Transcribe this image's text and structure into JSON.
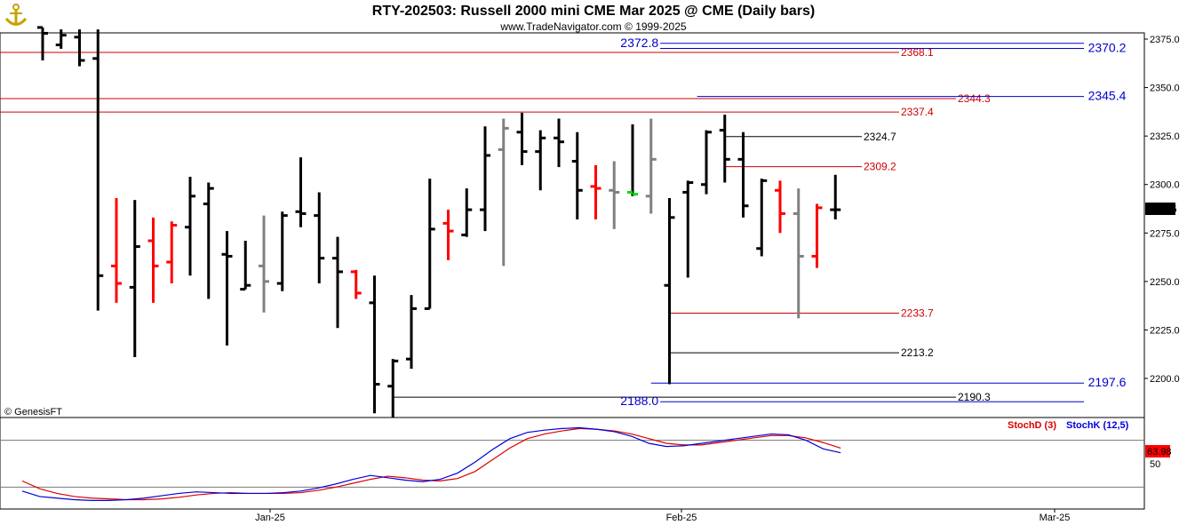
{
  "header": {
    "title": "RTY-202503:  Russell 2000 mini CME Mar 2025 @ CME  (Daily bars)",
    "subtitle": "www.TradeNavigator.com © 1999-2025",
    "logo_icon": "anchor-logo-icon"
  },
  "watermark": "© GenesisFT",
  "colors": {
    "up": "#000000",
    "down": "#ff0000",
    "neutral": "#808080",
    "highlight": "#00dd00",
    "blue_level": "#0000cc",
    "red_level": "#cc0000",
    "black_level": "#000000",
    "stoch_d": "#dd0000",
    "stoch_k": "#0000dd",
    "last_bg": "#000000"
  },
  "chart_data": {
    "type": "ohlc",
    "y_axis": {
      "ticks": [
        "2375.0",
        "2350.0",
        "2325.0",
        "2300.0",
        "2275.0",
        "2250.0",
        "2225.0",
        "2200.0"
      ],
      "range": [
        2181,
        2380
      ]
    },
    "x_axis": {
      "labels": [
        "Jan-25",
        "Feb-25",
        "Mar-25"
      ]
    },
    "last_price": "2287.5",
    "bars": [
      {
        "o": 2381,
        "h": 2381,
        "l": 2364,
        "c": 2378,
        "col": "up"
      },
      {
        "o": 2372,
        "h": 2380,
        "l": 2370,
        "c": 2377,
        "col": "up"
      },
      {
        "o": 2376,
        "h": 2380,
        "l": 2361,
        "c": 2364,
        "col": "up"
      },
      {
        "o": 2365,
        "h": 2380,
        "l": 2235,
        "c": 2253,
        "col": "up"
      },
      {
        "o": 2258,
        "h": 2293,
        "l": 2239,
        "c": 2249,
        "col": "down"
      },
      {
        "o": 2247,
        "h": 2292,
        "l": 2211,
        "c": 2268,
        "col": "up"
      },
      {
        "o": 2271,
        "h": 2283,
        "l": 2239,
        "c": 2258,
        "col": "down"
      },
      {
        "o": 2260,
        "h": 2281,
        "l": 2249,
        "c": 2279,
        "col": "down"
      },
      {
        "o": 2278,
        "h": 2304,
        "l": 2253,
        "c": 2294,
        "col": "up"
      },
      {
        "o": 2290,
        "h": 2301,
        "l": 2241,
        "c": 2298,
        "col": "up"
      },
      {
        "o": 2264,
        "h": 2276,
        "l": 2217,
        "c": 2263,
        "col": "up"
      },
      {
        "o": 2246,
        "h": 2271,
        "l": 2246,
        "c": 2248,
        "col": "up"
      },
      {
        "o": 2258,
        "h": 2284,
        "l": 2234,
        "c": 2250,
        "col": "neutral"
      },
      {
        "o": 2249,
        "h": 2286,
        "l": 2245,
        "c": 2284,
        "col": "up"
      },
      {
        "o": 2286,
        "h": 2314,
        "l": 2278,
        "c": 2285,
        "col": "up"
      },
      {
        "o": 2284,
        "h": 2296,
        "l": 2249,
        "c": 2262,
        "col": "up"
      },
      {
        "o": 2262,
        "h": 2273,
        "l": 2226,
        "c": 2255,
        "col": "up"
      },
      {
        "o": 2255,
        "h": 2256,
        "l": 2241,
        "c": 2244,
        "col": "down"
      },
      {
        "o": 2239,
        "h": 2253,
        "l": 2182,
        "c": 2197,
        "col": "up"
      },
      {
        "o": 2196,
        "h": 2210,
        "l": 2180,
        "c": 2209,
        "col": "up"
      },
      {
        "o": 2210,
        "h": 2243,
        "l": 2205,
        "c": 2236,
        "col": "up"
      },
      {
        "o": 2236,
        "h": 2303,
        "l": 2236,
        "c": 2277,
        "col": "up"
      },
      {
        "o": 2280,
        "h": 2287,
        "l": 2261,
        "c": 2276,
        "col": "down"
      },
      {
        "o": 2274,
        "h": 2298,
        "l": 2273,
        "c": 2287,
        "col": "up"
      },
      {
        "o": 2287,
        "h": 2330,
        "l": 2276,
        "c": 2315,
        "col": "up"
      },
      {
        "o": 2318,
        "h": 2334,
        "l": 2258,
        "c": 2329,
        "col": "neutral"
      },
      {
        "o": 2327,
        "h": 2337,
        "l": 2310,
        "c": 2317,
        "col": "up"
      },
      {
        "o": 2317,
        "h": 2328,
        "l": 2297,
        "c": 2324,
        "col": "up"
      },
      {
        "o": 2324,
        "h": 2334,
        "l": 2309,
        "c": 2322,
        "col": "up"
      },
      {
        "o": 2312,
        "h": 2327,
        "l": 2282,
        "c": 2297,
        "col": "up"
      },
      {
        "o": 2299,
        "h": 2310,
        "l": 2282,
        "c": 2298,
        "col": "down"
      },
      {
        "o": 2297,
        "h": 2312,
        "l": 2277,
        "c": 2296,
        "col": "neutral"
      },
      {
        "o": 2296,
        "h": 2331,
        "l": 2294,
        "c": 2295,
        "col": "highlight"
      },
      {
        "o": 2294,
        "h": 2334,
        "l": 2285,
        "c": 2313,
        "col": "neutral"
      },
      {
        "o": 2248,
        "h": 2293,
        "l": 2197,
        "c": 2283,
        "col": "up"
      },
      {
        "o": 2296,
        "h": 2302,
        "l": 2252,
        "c": 2301,
        "col": "up"
      },
      {
        "o": 2300,
        "h": 2328,
        "l": 2295,
        "c": 2327,
        "col": "up"
      },
      {
        "o": 2328,
        "h": 2336,
        "l": 2301,
        "c": 2313,
        "col": "up"
      },
      {
        "o": 2313,
        "h": 2327,
        "l": 2283,
        "c": 2289,
        "col": "up"
      },
      {
        "o": 2267,
        "h": 2303,
        "l": 2263,
        "c": 2302,
        "col": "up"
      },
      {
        "o": 2297,
        "h": 2302,
        "l": 2275,
        "c": 2285,
        "col": "down"
      },
      {
        "o": 2285,
        "h": 2298,
        "l": 2231,
        "c": 2263,
        "col": "neutral"
      },
      {
        "o": 2263,
        "h": 2290,
        "l": 2257,
        "c": 2288,
        "col": "down"
      },
      {
        "o": 2287,
        "h": 2305,
        "l": 2282,
        "c": 2287,
        "col": "up"
      }
    ],
    "levels": [
      {
        "value": "2372.8",
        "price": 2372.8,
        "color": "blue",
        "style": "big",
        "start_bar": 33.5,
        "label_side": "left"
      },
      {
        "value": "2370.2",
        "price": 2370.2,
        "color": "blue",
        "style": "big",
        "start_bar": 33.5,
        "label_side": "right"
      },
      {
        "value": "2368.1",
        "price": 2368.1,
        "color": "red",
        "style": "small",
        "start_bar": -5,
        "label_side": "right"
      },
      {
        "value": "2344.3",
        "price": 2344.3,
        "color": "red",
        "style": "small",
        "start_bar": -5,
        "label_side": "right"
      },
      {
        "value": "2345.4",
        "price": 2345.4,
        "color": "blue",
        "style": "big",
        "start_bar": 35.5,
        "label_side": "right"
      },
      {
        "value": "2337.4",
        "price": 2337.4,
        "color": "red",
        "style": "small",
        "start_bar": -5,
        "label_side": "right"
      },
      {
        "value": "2324.7",
        "price": 2324.7,
        "color": "black",
        "style": "small",
        "start_bar": 37,
        "label_side": "right"
      },
      {
        "value": "2309.2",
        "price": 2309.2,
        "color": "red",
        "style": "small",
        "start_bar": 37,
        "label_side": "right"
      },
      {
        "value": "2233.7",
        "price": 2233.7,
        "color": "red",
        "style": "small",
        "start_bar": 34,
        "label_side": "right"
      },
      {
        "value": "2213.2",
        "price": 2213.2,
        "color": "black",
        "style": "small",
        "start_bar": 34,
        "label_side": "right"
      },
      {
        "value": "2197.6",
        "price": 2197.6,
        "color": "blue",
        "style": "big",
        "start_bar": 33,
        "label_side": "right"
      },
      {
        "value": "2190.3",
        "price": 2190.3,
        "color": "black",
        "style": "small",
        "start_bar": 19,
        "label_side": "right"
      },
      {
        "value": "2188.0",
        "price": 2188.0,
        "color": "blue",
        "style": "big",
        "start_bar": 33.5,
        "label_side": "left"
      }
    ],
    "stochastic": {
      "legend_d": "StochD (3)",
      "legend_k": "StochK (12,5)",
      "last_value": "63.98",
      "tick_label": "50",
      "range": [
        0,
        100
      ],
      "upper_line": 80,
      "lower_line": 20,
      "k": [
        15,
        8,
        6,
        4,
        3,
        3,
        4,
        6,
        9,
        12,
        14,
        13,
        12,
        12,
        12,
        13,
        15,
        19,
        24,
        30,
        35,
        32,
        29,
        27,
        30,
        38,
        52,
        68,
        82,
        90,
        93,
        95,
        96,
        94,
        91,
        85,
        76,
        72,
        73,
        76,
        79,
        82,
        85,
        88,
        87,
        80,
        69,
        64
      ],
      "d": [
        28,
        18,
        12,
        8,
        6,
        5,
        4,
        4,
        5,
        7,
        10,
        12,
        13,
        12,
        12,
        12,
        13,
        16,
        20,
        25,
        30,
        34,
        32,
        29,
        28,
        31,
        40,
        55,
        70,
        82,
        88,
        92,
        95,
        94,
        92,
        88,
        82,
        76,
        74,
        74,
        77,
        80,
        83,
        86,
        86,
        83,
        77,
        70
      ]
    }
  }
}
